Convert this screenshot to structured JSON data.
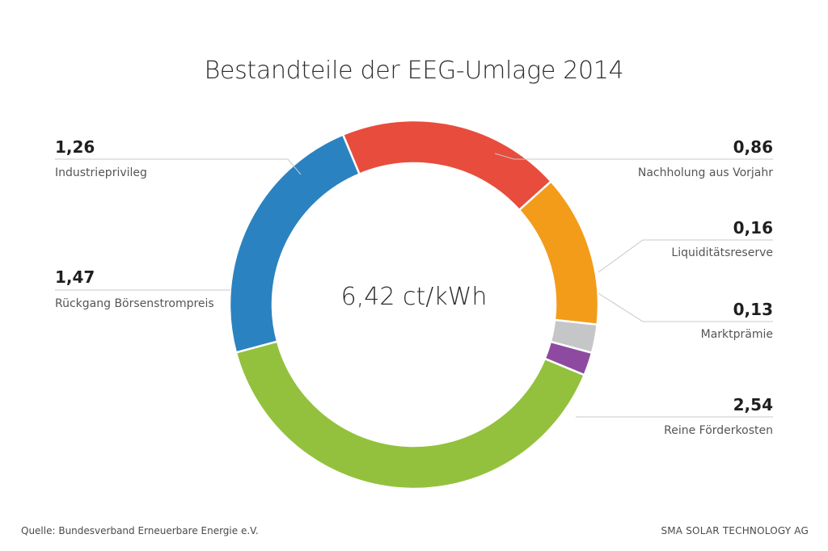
{
  "chart_data": {
    "type": "pie",
    "title": "Bestandteile der EEG-Umlage 2014",
    "center_text": "6,42 ct/kWh",
    "slices": [
      {
        "value_label": "0,86",
        "value": 0.86,
        "label": "Nachholung aus Vorjahr",
        "color": "#f39c1a"
      },
      {
        "value_label": "0,16",
        "value": 0.16,
        "label": "Liquiditätsreserve",
        "color": "#c5c6c8"
      },
      {
        "value_label": "0,13",
        "value": 0.13,
        "label": "Marktprämie",
        "color": "#8e4aa0"
      },
      {
        "value_label": "2,54",
        "value": 2.54,
        "label": "Reine Förderkosten",
        "color": "#93c13d"
      },
      {
        "value_label": "1,47",
        "value": 1.47,
        "label": "Rückgang Börsenstrompreis",
        "color": "#2b82c0"
      },
      {
        "value_label": "1,26",
        "value": 1.26,
        "label": "Industrieprivileg",
        "color": "#e84c3d"
      }
    ]
  },
  "footer": {
    "source": "Quelle: Bundesverband Erneuerbare Energie e.V.",
    "brand": "SMA Solar Technology AG"
  }
}
